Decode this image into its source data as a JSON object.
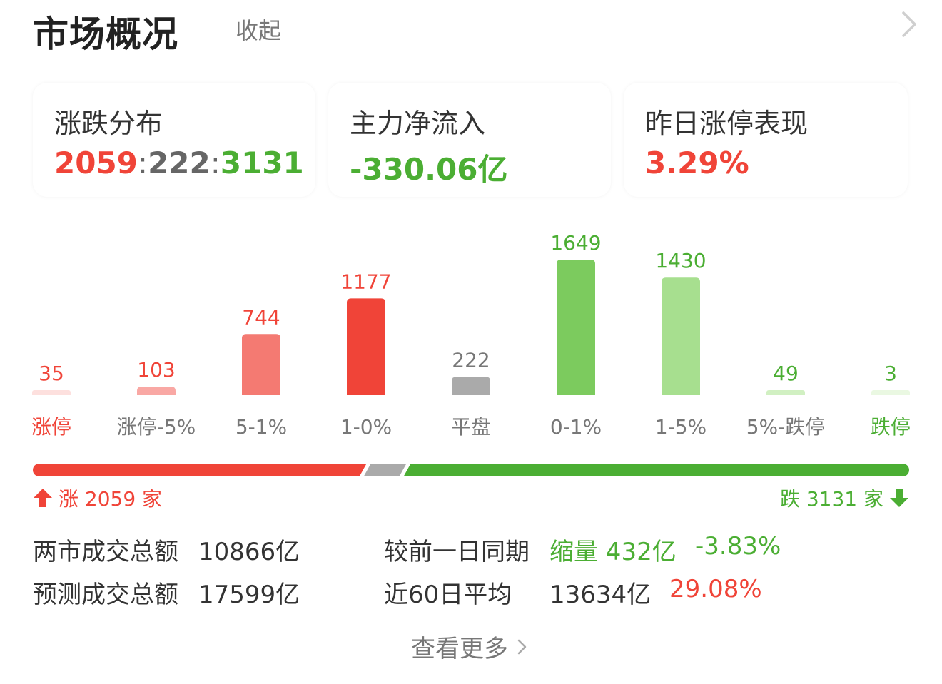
{
  "header": {
    "title": "市场概况",
    "collapse_label": "收起"
  },
  "cards": {
    "distribution": {
      "label": "涨跌分布",
      "up": "2059",
      "sep1": ":",
      "flat": "222",
      "sep2": ":",
      "down": "3131"
    },
    "inflow": {
      "label": "主力净流入",
      "value": "-330.06亿"
    },
    "limitup": {
      "label": "昨日涨停表现",
      "value": "3.29%"
    }
  },
  "colors": {
    "red": "#f04438",
    "green": "#4bae33",
    "gray": "#aaaaaa"
  },
  "chart_data": {
    "type": "bar",
    "categories": [
      "涨停",
      "涨停-5%",
      "5-1%",
      "1-0%",
      "平盘",
      "0-1%",
      "1-5%",
      "5%-跌停",
      "跌停"
    ],
    "values": [
      35,
      103,
      744,
      1177,
      222,
      1649,
      1430,
      49,
      3
    ],
    "bar_colors": [
      "#fde0de",
      "#f9a8a4",
      "#f47a72",
      "#f04438",
      "#aaaaaa",
      "#7ccb5e",
      "#a7df8f",
      "#d1f0c2",
      "#eaf8e2"
    ],
    "label_colors": [
      "#f04438",
      "#f04438",
      "#f04438",
      "#f04438",
      "#777777",
      "#4bae33",
      "#4bae33",
      "#4bae33",
      "#4bae33"
    ],
    "category_colors": [
      "#f04438",
      "#777777",
      "#777777",
      "#777777",
      "#777777",
      "#777777",
      "#777777",
      "#777777",
      "#4bae33"
    ]
  },
  "ratio": {
    "up": 2059,
    "flat": 222,
    "down": 3131
  },
  "summary": {
    "rise_label": "涨 2059 家",
    "fall_label": "跌 3131 家"
  },
  "stats": {
    "total_label": "两市成交总额",
    "total_value": "10866亿",
    "forecast_label": "预测成交总额",
    "forecast_value": "17599亿",
    "prev_label": "较前一日同期",
    "prev_change": "缩量 432亿",
    "prev_pct": "-3.83%",
    "avg_label": "近60日平均",
    "avg_value": "13634亿",
    "avg_pct": "29.08%"
  },
  "more_label": "查看更多"
}
